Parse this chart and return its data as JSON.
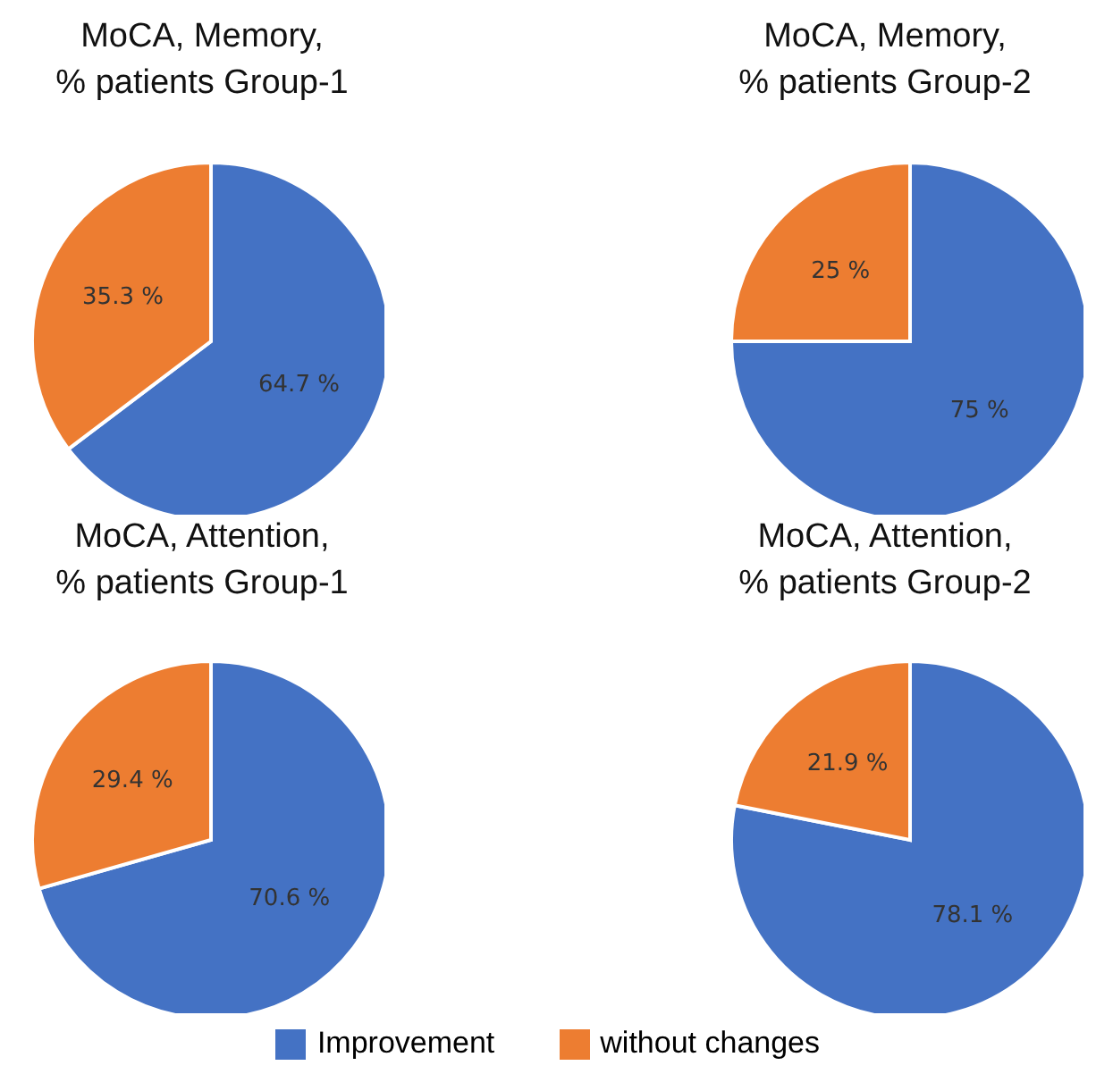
{
  "chart_data": [
    {
      "type": "pie",
      "title": "MoCA, Memory,\n% patients Group-1",
      "categories": [
        "Improvement",
        "without changes"
      ],
      "values": [
        64.7,
        35.3
      ],
      "colors": [
        "#4472c4",
        "#ed7d31"
      ],
      "value_labels": [
        "64.7 %",
        "35.3 %"
      ],
      "legend": "bottom"
    },
    {
      "type": "pie",
      "title": "MoCA, Memory,\n% patients Group-2",
      "categories": [
        null,
        null
      ],
      "values": [
        75,
        25
      ],
      "colors": [
        "#4472c4",
        "#ed7d31"
      ],
      "value_labels": [
        "75 %",
        "25 %"
      ]
    },
    {
      "type": "pie",
      "title": "MoCA, Attention,\n% patients Group-1",
      "categories": [
        null,
        null
      ],
      "values": [
        70.6,
        29.4
      ],
      "colors": [
        "#4472c4",
        "#ed7d31"
      ],
      "value_labels": [
        "70.6 %",
        "29.4 %"
      ]
    },
    {
      "type": "pie",
      "title": "MoCA, Attention,\n% patients Group-2",
      "categories": [
        null,
        null
      ],
      "values": [
        78.1,
        21.9
      ],
      "colors": [
        "#4472c4",
        "#ed7d31"
      ],
      "value_labels": [
        "78.1 %",
        "21.9 %"
      ]
    }
  ]
}
